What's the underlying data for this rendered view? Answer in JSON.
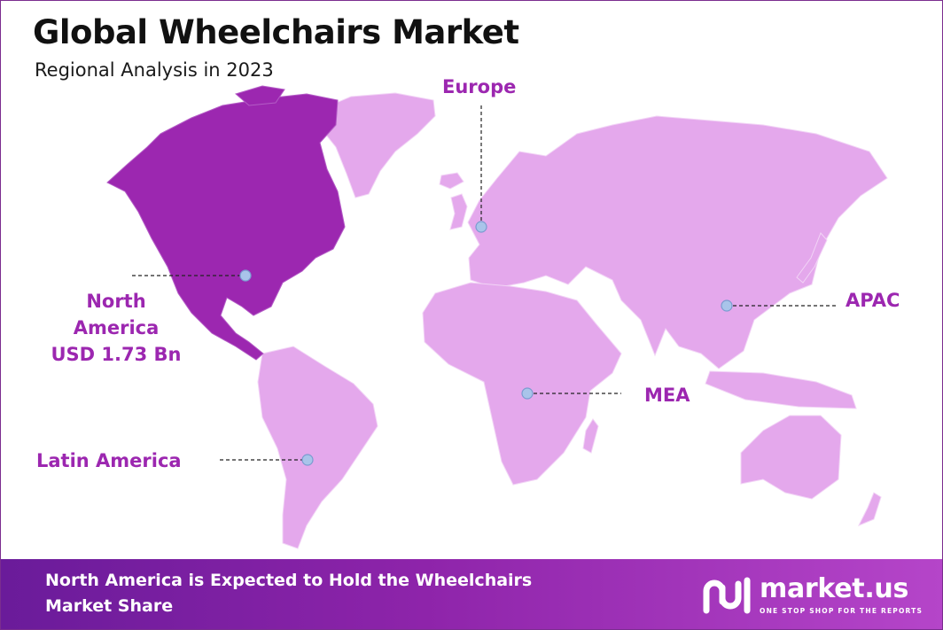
{
  "header": {
    "title": "Global Wheelchairs Market",
    "subtitle": "Regional Analysis in 2023"
  },
  "regions": {
    "north_america": {
      "line1": "North",
      "line2": "America",
      "line3": "USD 1.73 Bn",
      "highlighted": true
    },
    "europe": {
      "label": "Europe"
    },
    "apac": {
      "label": "APAC"
    },
    "mea": {
      "label": "MEA"
    },
    "latin_america": {
      "label": "Latin America"
    }
  },
  "footer": {
    "text": "North America is Expected to Hold the Wheelchairs Market Share",
    "brand_name": "market.us",
    "brand_tagline": "ONE STOP SHOP FOR THE REPORTS"
  },
  "colors": {
    "highlight_region": "#9c27b0",
    "other_regions": "#e4a8ec",
    "label_text": "#9c27b0",
    "marker": "#a9c4ea",
    "footer_gradient_start": "#6a1b9a",
    "footer_gradient_end": "#b545c9",
    "frame_border": "#7b2d8f"
  }
}
